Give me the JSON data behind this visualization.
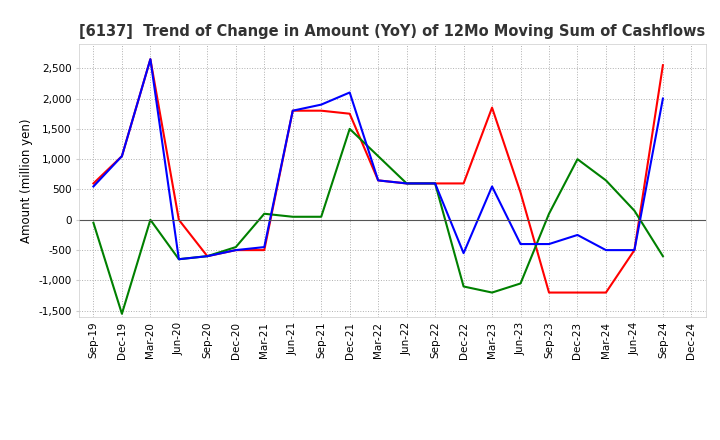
{
  "title": "[6137]  Trend of Change in Amount (YoY) of 12Mo Moving Sum of Cashflows",
  "ylabel": "Amount (million yen)",
  "x_labels": [
    "Sep-19",
    "Dec-19",
    "Mar-20",
    "Jun-20",
    "Sep-20",
    "Dec-20",
    "Mar-21",
    "Jun-21",
    "Sep-21",
    "Dec-21",
    "Mar-22",
    "Jun-22",
    "Sep-22",
    "Dec-22",
    "Mar-23",
    "Jun-23",
    "Sep-23",
    "Dec-23",
    "Mar-24",
    "Jun-24",
    "Sep-24",
    "Dec-24"
  ],
  "operating": [
    600,
    1050,
    2650,
    0,
    -600,
    -500,
    -500,
    1800,
    1800,
    1750,
    650,
    600,
    600,
    600,
    1850,
    450,
    -1200,
    -1200,
    -1200,
    -500,
    2550,
    null
  ],
  "investing": [
    -50,
    -1550,
    0,
    -650,
    -600,
    -450,
    100,
    50,
    50,
    1500,
    1050,
    600,
    600,
    -1100,
    -1200,
    -1050,
    100,
    1000,
    650,
    150,
    -600,
    null
  ],
  "free": [
    550,
    1050,
    2650,
    -650,
    -600,
    -500,
    -450,
    1800,
    1900,
    2100,
    650,
    600,
    600,
    -550,
    550,
    -400,
    -400,
    -250,
    -500,
    -500,
    2000,
    null
  ],
  "operating_color": "#ff0000",
  "investing_color": "#008000",
  "free_color": "#0000ff",
  "ylim": [
    -1600,
    2900
  ],
  "yticks": [
    -1500,
    -1000,
    -500,
    0,
    500,
    1000,
    1500,
    2000,
    2500
  ],
  "bg_color": "#ffffff",
  "grid_color": "#b0b0b0",
  "line_width": 1.5
}
